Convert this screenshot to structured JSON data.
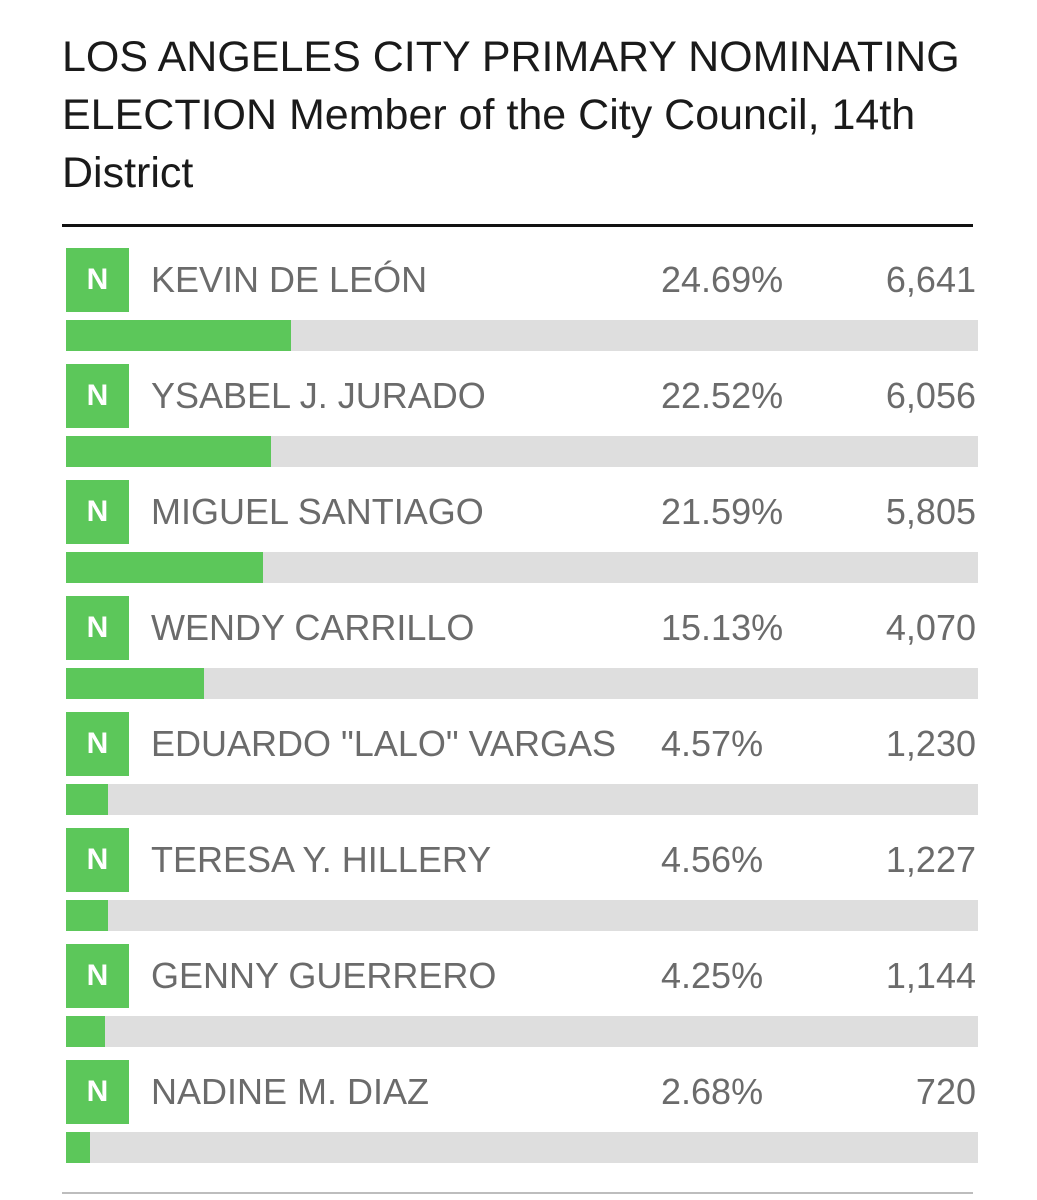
{
  "title": "LOS ANGELES CITY PRIMARY NOMINATING ELECTION Member of the City Council, 14th District",
  "colors": {
    "accent_green": "#5cc75a",
    "bar_track": "#dedede",
    "candidate_text": "#6b6b6b",
    "title_text": "#1a1a1a"
  },
  "candidates": [
    {
      "badge": "N",
      "name": "KEVIN DE LEÓN",
      "percent_label": "24.69%",
      "votes": "6,641",
      "share": 24.69
    },
    {
      "badge": "N",
      "name": "YSABEL J. JURADO",
      "percent_label": "22.52%",
      "votes": "6,056",
      "share": 22.52
    },
    {
      "badge": "N",
      "name": "MIGUEL SANTIAGO",
      "percent_label": "21.59%",
      "votes": "5,805",
      "share": 21.59
    },
    {
      "badge": "N",
      "name": "WENDY CARRILLO",
      "percent_label": "15.13%",
      "votes": "4,070",
      "share": 15.13
    },
    {
      "badge": "N",
      "name": "EDUARDO \"LALO\" VARGAS",
      "percent_label": "4.57%",
      "votes": "1,230",
      "share": 4.57
    },
    {
      "badge": "N",
      "name": "TERESA Y. HILLERY",
      "percent_label": "4.56%",
      "votes": "1,227",
      "share": 4.56
    },
    {
      "badge": "N",
      "name": "GENNY GUERRERO",
      "percent_label": "4.25%",
      "votes": "1,144",
      "share": 4.25
    },
    {
      "badge": "N",
      "name": "NADINE M. DIAZ",
      "percent_label": "2.68%",
      "votes": "720",
      "share": 2.68
    }
  ]
}
